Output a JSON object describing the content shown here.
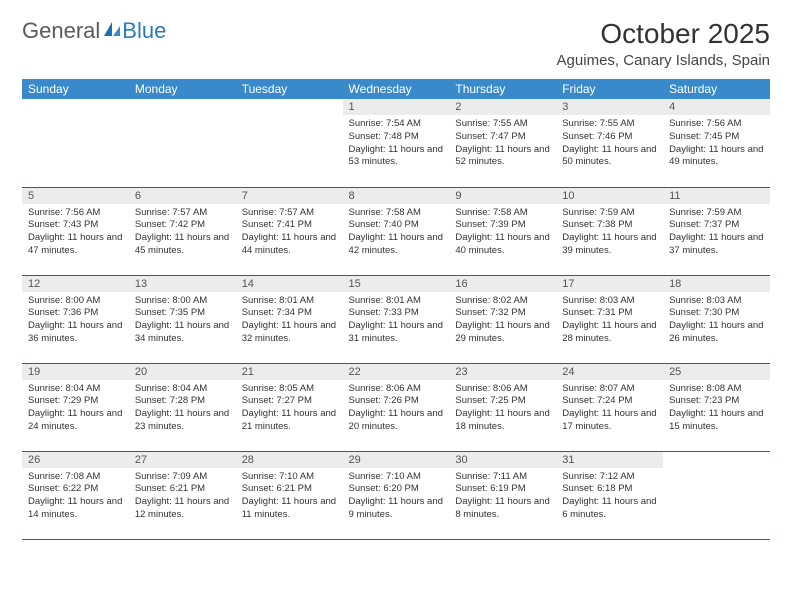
{
  "logo": {
    "text1": "General",
    "text2": "Blue"
  },
  "title": "October 2025",
  "location": "Aguimes, Canary Islands, Spain",
  "colors": {
    "headerBg": "#3a8acb",
    "headerText": "#ffffff",
    "dayNumBg": "#ececec",
    "borderBottom": "#2e5f8a",
    "textColor": "#333333",
    "logoGray": "#5a5a5a",
    "logoBlue": "#2b7bbf"
  },
  "font": {
    "family": "Arial",
    "title_size": 28,
    "location_size": 15,
    "header_size": 12,
    "daynum_size": 11,
    "body_size": 9.5
  },
  "columns": [
    "Sunday",
    "Monday",
    "Tuesday",
    "Wednesday",
    "Thursday",
    "Friday",
    "Saturday"
  ],
  "weeks": [
    [
      null,
      null,
      null,
      {
        "n": "1",
        "sr": "7:54 AM",
        "ss": "7:48 PM",
        "dl": "11 hours and 53 minutes."
      },
      {
        "n": "2",
        "sr": "7:55 AM",
        "ss": "7:47 PM",
        "dl": "11 hours and 52 minutes."
      },
      {
        "n": "3",
        "sr": "7:55 AM",
        "ss": "7:46 PM",
        "dl": "11 hours and 50 minutes."
      },
      {
        "n": "4",
        "sr": "7:56 AM",
        "ss": "7:45 PM",
        "dl": "11 hours and 49 minutes."
      }
    ],
    [
      {
        "n": "5",
        "sr": "7:56 AM",
        "ss": "7:43 PM",
        "dl": "11 hours and 47 minutes."
      },
      {
        "n": "6",
        "sr": "7:57 AM",
        "ss": "7:42 PM",
        "dl": "11 hours and 45 minutes."
      },
      {
        "n": "7",
        "sr": "7:57 AM",
        "ss": "7:41 PM",
        "dl": "11 hours and 44 minutes."
      },
      {
        "n": "8",
        "sr": "7:58 AM",
        "ss": "7:40 PM",
        "dl": "11 hours and 42 minutes."
      },
      {
        "n": "9",
        "sr": "7:58 AM",
        "ss": "7:39 PM",
        "dl": "11 hours and 40 minutes."
      },
      {
        "n": "10",
        "sr": "7:59 AM",
        "ss": "7:38 PM",
        "dl": "11 hours and 39 minutes."
      },
      {
        "n": "11",
        "sr": "7:59 AM",
        "ss": "7:37 PM",
        "dl": "11 hours and 37 minutes."
      }
    ],
    [
      {
        "n": "12",
        "sr": "8:00 AM",
        "ss": "7:36 PM",
        "dl": "11 hours and 36 minutes."
      },
      {
        "n": "13",
        "sr": "8:00 AM",
        "ss": "7:35 PM",
        "dl": "11 hours and 34 minutes."
      },
      {
        "n": "14",
        "sr": "8:01 AM",
        "ss": "7:34 PM",
        "dl": "11 hours and 32 minutes."
      },
      {
        "n": "15",
        "sr": "8:01 AM",
        "ss": "7:33 PM",
        "dl": "11 hours and 31 minutes."
      },
      {
        "n": "16",
        "sr": "8:02 AM",
        "ss": "7:32 PM",
        "dl": "11 hours and 29 minutes."
      },
      {
        "n": "17",
        "sr": "8:03 AM",
        "ss": "7:31 PM",
        "dl": "11 hours and 28 minutes."
      },
      {
        "n": "18",
        "sr": "8:03 AM",
        "ss": "7:30 PM",
        "dl": "11 hours and 26 minutes."
      }
    ],
    [
      {
        "n": "19",
        "sr": "8:04 AM",
        "ss": "7:29 PM",
        "dl": "11 hours and 24 minutes."
      },
      {
        "n": "20",
        "sr": "8:04 AM",
        "ss": "7:28 PM",
        "dl": "11 hours and 23 minutes."
      },
      {
        "n": "21",
        "sr": "8:05 AM",
        "ss": "7:27 PM",
        "dl": "11 hours and 21 minutes."
      },
      {
        "n": "22",
        "sr": "8:06 AM",
        "ss": "7:26 PM",
        "dl": "11 hours and 20 minutes."
      },
      {
        "n": "23",
        "sr": "8:06 AM",
        "ss": "7:25 PM",
        "dl": "11 hours and 18 minutes."
      },
      {
        "n": "24",
        "sr": "8:07 AM",
        "ss": "7:24 PM",
        "dl": "11 hours and 17 minutes."
      },
      {
        "n": "25",
        "sr": "8:08 AM",
        "ss": "7:23 PM",
        "dl": "11 hours and 15 minutes."
      }
    ],
    [
      {
        "n": "26",
        "sr": "7:08 AM",
        "ss": "6:22 PM",
        "dl": "11 hours and 14 minutes."
      },
      {
        "n": "27",
        "sr": "7:09 AM",
        "ss": "6:21 PM",
        "dl": "11 hours and 12 minutes."
      },
      {
        "n": "28",
        "sr": "7:10 AM",
        "ss": "6:21 PM",
        "dl": "11 hours and 11 minutes."
      },
      {
        "n": "29",
        "sr": "7:10 AM",
        "ss": "6:20 PM",
        "dl": "11 hours and 9 minutes."
      },
      {
        "n": "30",
        "sr": "7:11 AM",
        "ss": "6:19 PM",
        "dl": "11 hours and 8 minutes."
      },
      {
        "n": "31",
        "sr": "7:12 AM",
        "ss": "6:18 PM",
        "dl": "11 hours and 6 minutes."
      },
      null
    ]
  ],
  "labels": {
    "sunrise": "Sunrise:",
    "sunset": "Sunset:",
    "daylight": "Daylight:"
  }
}
